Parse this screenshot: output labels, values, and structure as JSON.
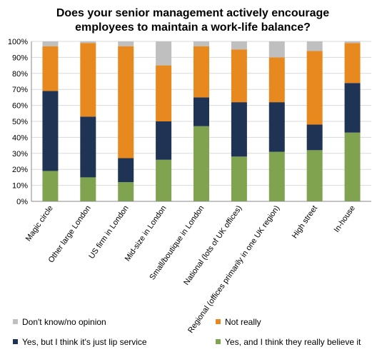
{
  "chart_data": {
    "type": "bar",
    "stacked": true,
    "percent_stacked": true,
    "title": "Does your senior management actively encourage employees to maintain a work-life balance?",
    "title_lines": [
      "Does your senior management actively encourage",
      "employees to maintain a work-life balance?"
    ],
    "categories": [
      "Magic circle",
      "Other large London",
      "US firm in London",
      "Mid-size in London",
      "Small/boutique in London",
      "National (lots of UK offices)",
      "Regional (offices primarily in one UK region)",
      "High street",
      "In-house"
    ],
    "series": [
      {
        "name": "Yes, and I think they really believe it",
        "color": "#7fa34e",
        "values": [
          19,
          15,
          12,
          26,
          47,
          28,
          31,
          32,
          43
        ]
      },
      {
        "name": "Yes, but I think it's just lip service",
        "color": "#1f3354",
        "values": [
          50,
          38,
          15,
          24,
          18,
          34,
          31,
          16,
          31
        ]
      },
      {
        "name": "Not really",
        "color": "#e8891f",
        "values": [
          28,
          46,
          70,
          35,
          32,
          33,
          28,
          46,
          25
        ]
      },
      {
        "name": "Don't know/no opinion",
        "color": "#bfbfbf",
        "values": [
          3,
          1,
          3,
          15,
          3,
          5,
          10,
          6,
          1
        ]
      }
    ],
    "legend_order": [
      "Don't know/no opinion",
      "Not really",
      "Yes, but I think it's just lip service",
      "Yes, and I think they really believe it"
    ],
    "ylim": [
      0,
      100
    ],
    "yticks": [
      "0%",
      "10%",
      "20%",
      "30%",
      "40%",
      "50%",
      "60%",
      "70%",
      "80%",
      "90%",
      "100%"
    ],
    "grid": true,
    "legend_position": "bottom"
  }
}
